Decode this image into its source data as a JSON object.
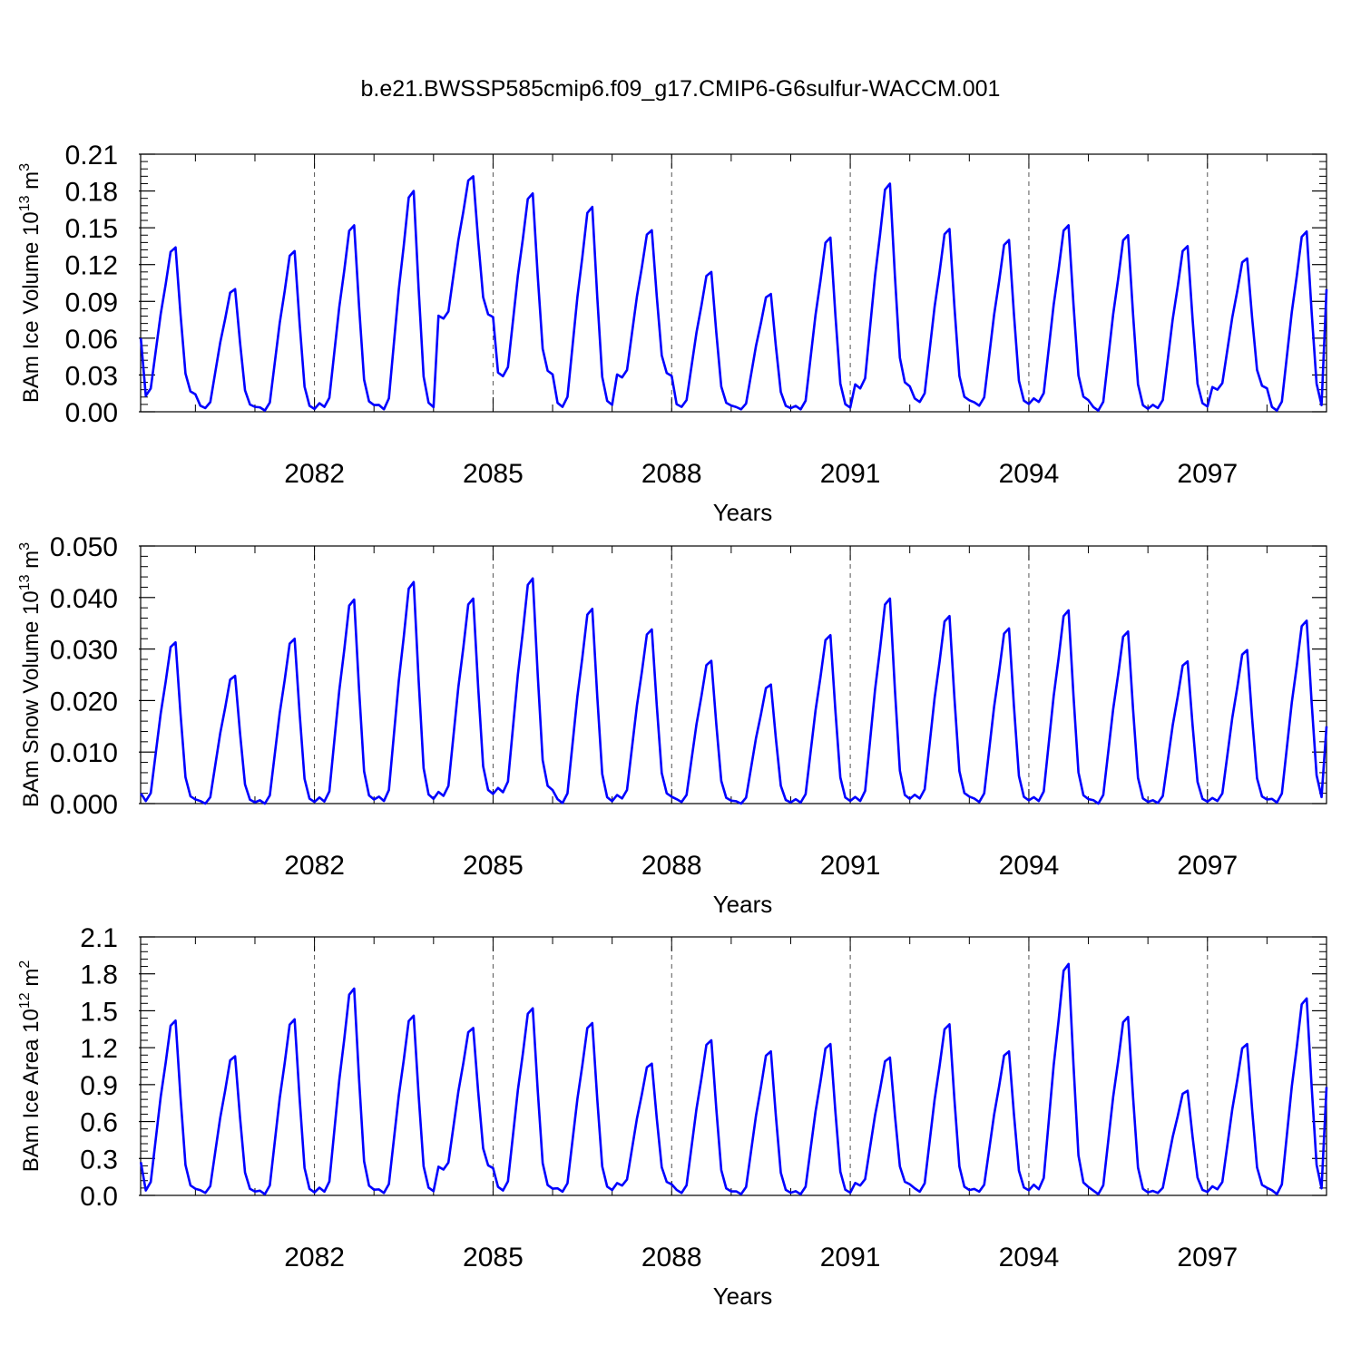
{
  "title": "b.e21.BWSSP585cmip6.f09_g17.CMIP6-G6sulfur-WACCM.001",
  "chart_data": [
    {
      "type": "line",
      "ylabel_main": "BAm Ice Volume 10",
      "ylabel_exp": "13",
      "ylabel_unit": " m",
      "ylabel_unit_exp": "3",
      "xlabel": "Years",
      "xlim": [
        2079.08,
        2099.0
      ],
      "ylim": [
        0,
        0.21
      ],
      "yticks": [
        0,
        0.03,
        0.06,
        0.09,
        0.12,
        0.15,
        0.18,
        0.21
      ],
      "ytick_labels": [
        "0.00",
        "0.03",
        "0.06",
        "0.09",
        "0.12",
        "0.15",
        "0.18",
        "0.21"
      ],
      "xticks": [
        2082,
        2085,
        2088,
        2091,
        2094,
        2097
      ],
      "xtick_labels": [
        "2082",
        "2085",
        "2088",
        "2091",
        "2094",
        "2097"
      ],
      "color": "#0000ff",
      "years": [
        2079,
        2080,
        2081,
        2082,
        2083,
        2084,
        2085,
        2086,
        2087,
        2088,
        2089,
        2090,
        2091,
        2092,
        2093,
        2094,
        2095,
        2096,
        2097,
        2098,
        2099
      ],
      "annual_max": [
        0.134,
        0.1,
        0.131,
        0.152,
        0.18,
        0.192,
        0.178,
        0.167,
        0.148,
        0.114,
        0.096,
        0.142,
        0.186,
        0.149,
        0.14,
        0.152,
        0.144,
        0.135,
        0.125,
        0.147,
        0.1
      ],
      "annual_min": [
        0.013,
        0.003,
        0.001,
        0.004,
        0.002,
        0.076,
        0.029,
        0.004,
        0.028,
        0.004,
        0.002,
        0.002,
        0.019,
        0.008,
        0.005,
        0.008,
        0.001,
        0.003,
        0.018,
        0.001,
        0.01
      ],
      "start_value": 0.06,
      "end_value": 0.1
    },
    {
      "type": "line",
      "ylabel_main": "BAm Snow Volume 10",
      "ylabel_exp": "13",
      "ylabel_unit": " m",
      "ylabel_unit_exp": "3",
      "xlabel": "Years",
      "xlim": [
        2079.08,
        2099.0
      ],
      "ylim": [
        0,
        0.05
      ],
      "yticks": [
        0,
        0.01,
        0.02,
        0.03,
        0.04,
        0.05
      ],
      "ytick_labels": [
        "0.000",
        "0.010",
        "0.020",
        "0.030",
        "0.040",
        "0.050"
      ],
      "xticks": [
        2082,
        2085,
        2088,
        2091,
        2094,
        2097
      ],
      "xtick_labels": [
        "2082",
        "2085",
        "2088",
        "2091",
        "2094",
        "2097"
      ],
      "color": "#0000ff",
      "years": [
        2079,
        2080,
        2081,
        2082,
        2083,
        2084,
        2085,
        2086,
        2087,
        2088,
        2089,
        2090,
        2091,
        2092,
        2093,
        2094,
        2095,
        2096,
        2097,
        2098,
        2099
      ],
      "annual_max": [
        0.0313,
        0.0248,
        0.032,
        0.0396,
        0.043,
        0.0398,
        0.0437,
        0.0378,
        0.0338,
        0.0277,
        0.0231,
        0.0327,
        0.0398,
        0.0364,
        0.034,
        0.0375,
        0.0334,
        0.0276,
        0.0298,
        0.0355,
        0.015
      ],
      "annual_min": [
        0.0005,
        0.0,
        0.0,
        0.0004,
        0.0005,
        0.0015,
        0.0022,
        0.0001,
        0.001,
        0.0003,
        0.0,
        0.0002,
        0.0005,
        0.001,
        0.0003,
        0.0005,
        0.0,
        0.0001,
        0.0005,
        0.0002,
        0.0005
      ],
      "start_value": 0.002,
      "end_value": 0.015
    },
    {
      "type": "line",
      "ylabel_main": "BAm Ice Area 10",
      "ylabel_exp": "12",
      "ylabel_unit": " m",
      "ylabel_unit_exp": "2",
      "xlabel": "Years",
      "xlim": [
        2079.08,
        2099.0
      ],
      "ylim": [
        0,
        2.1
      ],
      "yticks": [
        0,
        0.3,
        0.6,
        0.9,
        1.2,
        1.5,
        1.8,
        2.1
      ],
      "ytick_labels": [
        "0.0",
        "0.3",
        "0.6",
        "0.9",
        "1.2",
        "1.5",
        "1.8",
        "2.1"
      ],
      "xticks": [
        2082,
        2085,
        2088,
        2091,
        2094,
        2097
      ],
      "xtick_labels": [
        "2082",
        "2085",
        "2088",
        "2091",
        "2094",
        "2097"
      ],
      "color": "#0000ff",
      "years": [
        2079,
        2080,
        2081,
        2082,
        2083,
        2084,
        2085,
        2086,
        2087,
        2088,
        2089,
        2090,
        2091,
        2092,
        2093,
        2094,
        2095,
        2096,
        2097,
        2098,
        2099
      ],
      "annual_max": [
        1.42,
        1.13,
        1.43,
        1.68,
        1.46,
        1.36,
        1.52,
        1.4,
        1.07,
        1.26,
        1.17,
        1.23,
        1.12,
        1.39,
        1.17,
        1.88,
        1.45,
        0.85,
        1.23,
        1.6,
        0.88
      ],
      "annual_min": [
        0.04,
        0.02,
        0.01,
        0.03,
        0.02,
        0.21,
        0.04,
        0.03,
        0.08,
        0.02,
        0.01,
        0.01,
        0.08,
        0.03,
        0.03,
        0.05,
        0.01,
        0.02,
        0.05,
        0.01,
        0.01
      ],
      "start_value": 0.27,
      "end_value": 0.88
    }
  ]
}
